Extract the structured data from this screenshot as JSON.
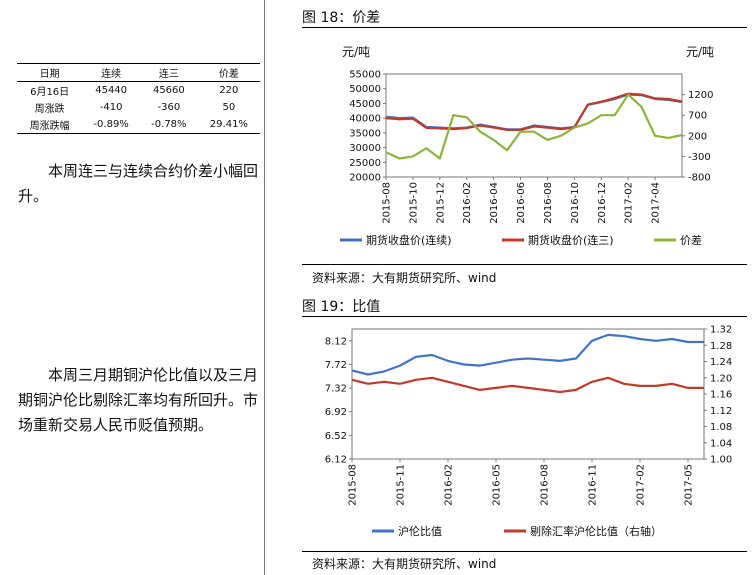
{
  "table": {
    "headers": [
      "日期",
      "连续",
      "连三",
      "价差"
    ],
    "rows": [
      [
        "6月16日",
        "45440",
        "45660",
        "220"
      ],
      [
        "周涨跌",
        "-410",
        "-360",
        "50"
      ],
      [
        "周涨跌幅",
        "-0.89%",
        "-0.78%",
        "29.41%"
      ]
    ]
  },
  "text": {
    "para1": "本周连三与连续合约价差小幅回升。",
    "para2": "本周三月期铜沪伦比值以及三月期铜沪伦比剔除汇率均有所回升。市场重新交易人民币贬值预期。"
  },
  "figures": {
    "fig18_title": "图 18：价差",
    "fig19_title": "图 19：比值",
    "source": "资料来源：大有期货研究所、wind"
  },
  "colors": {
    "blue": "#4472C4",
    "red": "#C0392B",
    "green": "#8DB33F"
  },
  "chart_data": [
    {
      "type": "line",
      "left_unit": "元/吨",
      "right_unit": "元/吨",
      "yticks_left": [
        "55000",
        "50000",
        "45000",
        "40000",
        "35000",
        "30000",
        "25000",
        "20000"
      ],
      "yticks_right": [
        "1200",
        "700",
        "200",
        "-300",
        "-800"
      ],
      "xticks": [
        "2015-08",
        "2015-10",
        "2015-12",
        "2016-02",
        "2016-04",
        "2016-06",
        "2016-08",
        "2016-10",
        "2016-12",
        "2017-02",
        "2017-04"
      ],
      "ylim_left": [
        20000,
        55000
      ],
      "ylim_right": [
        -800,
        1700
      ],
      "x_start": "2015-08",
      "x_end": "2017-06",
      "series": [
        {
          "name": "期货收盘价(连续)",
          "axis": "left",
          "x": [
            "2015-08",
            "2015-09",
            "2015-10",
            "2015-11",
            "2015-12",
            "2016-01",
            "2016-02",
            "2016-03",
            "2016-04",
            "2016-05",
            "2016-06",
            "2016-07",
            "2016-08",
            "2016-09",
            "2016-10",
            "2016-11",
            "2016-12",
            "2017-01",
            "2017-02",
            "2017-03",
            "2017-04",
            "2017-05",
            "2017-06"
          ],
          "y": [
            40500,
            40000,
            40200,
            37000,
            36800,
            36500,
            36800,
            37800,
            37000,
            36200,
            36200,
            37500,
            37000,
            36500,
            37000,
            44500,
            45500,
            46500,
            48000,
            47800,
            46500,
            46200,
            45440
          ]
        },
        {
          "name": "期货收盘价(连三)",
          "axis": "left",
          "x": [
            "2015-08",
            "2015-09",
            "2015-10",
            "2015-11",
            "2015-12",
            "2016-01",
            "2016-02",
            "2016-03",
            "2016-04",
            "2016-05",
            "2016-06",
            "2016-07",
            "2016-08",
            "2016-09",
            "2016-10",
            "2016-11",
            "2016-12",
            "2017-01",
            "2017-02",
            "2017-03",
            "2017-04",
            "2017-05",
            "2017-06"
          ],
          "y": [
            40000,
            39600,
            39800,
            36700,
            36500,
            36300,
            36600,
            37500,
            36800,
            36000,
            36000,
            37200,
            36800,
            36300,
            36800,
            44600,
            45600,
            46800,
            48300,
            48000,
            46700,
            46500,
            45660
          ]
        },
        {
          "name": "价差",
          "axis": "right",
          "x": [
            "2015-08",
            "2015-09",
            "2015-10",
            "2015-11",
            "2015-12",
            "2016-01",
            "2016-02",
            "2016-03",
            "2016-04",
            "2016-05",
            "2016-06",
            "2016-07",
            "2016-08",
            "2016-09",
            "2016-10",
            "2016-11",
            "2016-12",
            "2017-01",
            "2017-02",
            "2017-03",
            "2017-04",
            "2017-05",
            "2017-06"
          ],
          "y": [
            -200,
            -350,
            -300,
            -100,
            -350,
            700,
            650,
            300,
            100,
            -150,
            300,
            300,
            100,
            200,
            400,
            500,
            700,
            700,
            1200,
            900,
            200,
            150,
            220
          ]
        }
      ]
    },
    {
      "type": "line",
      "yticks_left": [
        "8.12",
        "7.72",
        "7.32",
        "6.92",
        "6.52",
        "6.12"
      ],
      "yticks_right": [
        "1.32",
        "1.28",
        "1.24",
        "1.20",
        "1.16",
        "1.12",
        "1.08",
        "1.04",
        "1.00"
      ],
      "xticks": [
        "2015-08",
        "2015-11",
        "2016-02",
        "2016-05",
        "2016-08",
        "2016-11",
        "2017-02",
        "2017-05"
      ],
      "ylim_left": [
        6.12,
        8.32
      ],
      "ylim_right": [
        1.0,
        1.32
      ],
      "x_start": "2015-08",
      "x_end": "2017-06",
      "series": [
        {
          "name": "沪伦比值",
          "axis": "left",
          "x": [
            "2015-08",
            "2015-09",
            "2015-10",
            "2015-11",
            "2015-12",
            "2016-01",
            "2016-02",
            "2016-03",
            "2016-04",
            "2016-05",
            "2016-06",
            "2016-07",
            "2016-08",
            "2016-09",
            "2016-10",
            "2016-11",
            "2016-12",
            "2017-01",
            "2017-02",
            "2017-03",
            "2017-04",
            "2017-05",
            "2017-06"
          ],
          "y": [
            7.62,
            7.55,
            7.6,
            7.7,
            7.85,
            7.88,
            7.78,
            7.72,
            7.7,
            7.75,
            7.8,
            7.82,
            7.8,
            7.78,
            7.82,
            8.12,
            8.22,
            8.2,
            8.15,
            8.12,
            8.15,
            8.1,
            8.1
          ]
        },
        {
          "name": "剔除汇率沪伦比值（右轴）",
          "axis": "right",
          "x": [
            "2015-08",
            "2015-09",
            "2015-10",
            "2015-11",
            "2015-12",
            "2016-01",
            "2016-02",
            "2016-03",
            "2016-04",
            "2016-05",
            "2016-06",
            "2016-07",
            "2016-08",
            "2016-09",
            "2016-10",
            "2016-11",
            "2016-12",
            "2017-01",
            "2017-02",
            "2017-03",
            "2017-04",
            "2017-05",
            "2017-06"
          ],
          "y": [
            1.195,
            1.185,
            1.19,
            1.185,
            1.195,
            1.2,
            1.19,
            1.18,
            1.17,
            1.175,
            1.18,
            1.175,
            1.17,
            1.165,
            1.17,
            1.19,
            1.2,
            1.185,
            1.18,
            1.18,
            1.185,
            1.175,
            1.175
          ]
        }
      ]
    }
  ]
}
